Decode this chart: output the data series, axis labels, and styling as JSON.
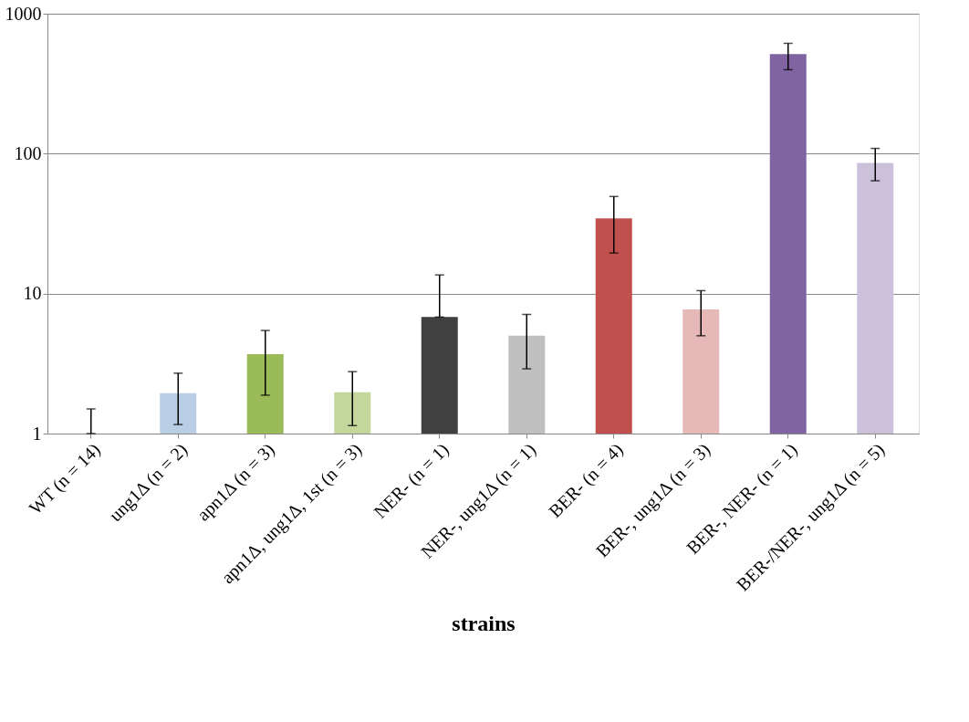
{
  "chart_data": {
    "type": "bar",
    "xlabel": "strains",
    "categories": [
      "WT (n = 14)",
      "ung1Δ (n = 2)",
      "apn1Δ (n = 3)",
      "apn1Δ, ung1Δ, 1st (n = 3)",
      "NER- (n = 1)",
      "NER-, ung1Δ (n = 1)",
      "BER- (n = 4)",
      "BER-, ung1Δ (n = 3)",
      "BER-, NER- (n = 1)",
      "BER-/NER-, ung1Δ (n = 5)"
    ],
    "values": [
      1,
      1.94,
      3.7,
      1.97,
      6.8,
      5.0,
      34.5,
      7.7,
      515,
      86
    ],
    "colors": [
      null,
      "#b9cde5",
      "#9bbb59",
      "#c3d69b",
      "#404040",
      "#bfbfbf",
      "#c0504d",
      "#e6b9b8",
      "#8064a2",
      "#ccc1da"
    ],
    "errors": [
      [
        1,
        1.5
      ],
      [
        1.16,
        2.7
      ],
      [
        1.88,
        5.45
      ],
      [
        1.14,
        2.77
      ],
      [
        6.8,
        13.6
      ],
      [
        2.9,
        7.1
      ],
      [
        19.5,
        49.4
      ],
      [
        5.0,
        10.5
      ],
      [
        398,
        614
      ],
      [
        64,
        109
      ]
    ],
    "log": "y",
    "ylim": [
      1,
      1000
    ],
    "yticks": [
      1,
      10,
      100,
      1000
    ],
    "grid": "y"
  }
}
